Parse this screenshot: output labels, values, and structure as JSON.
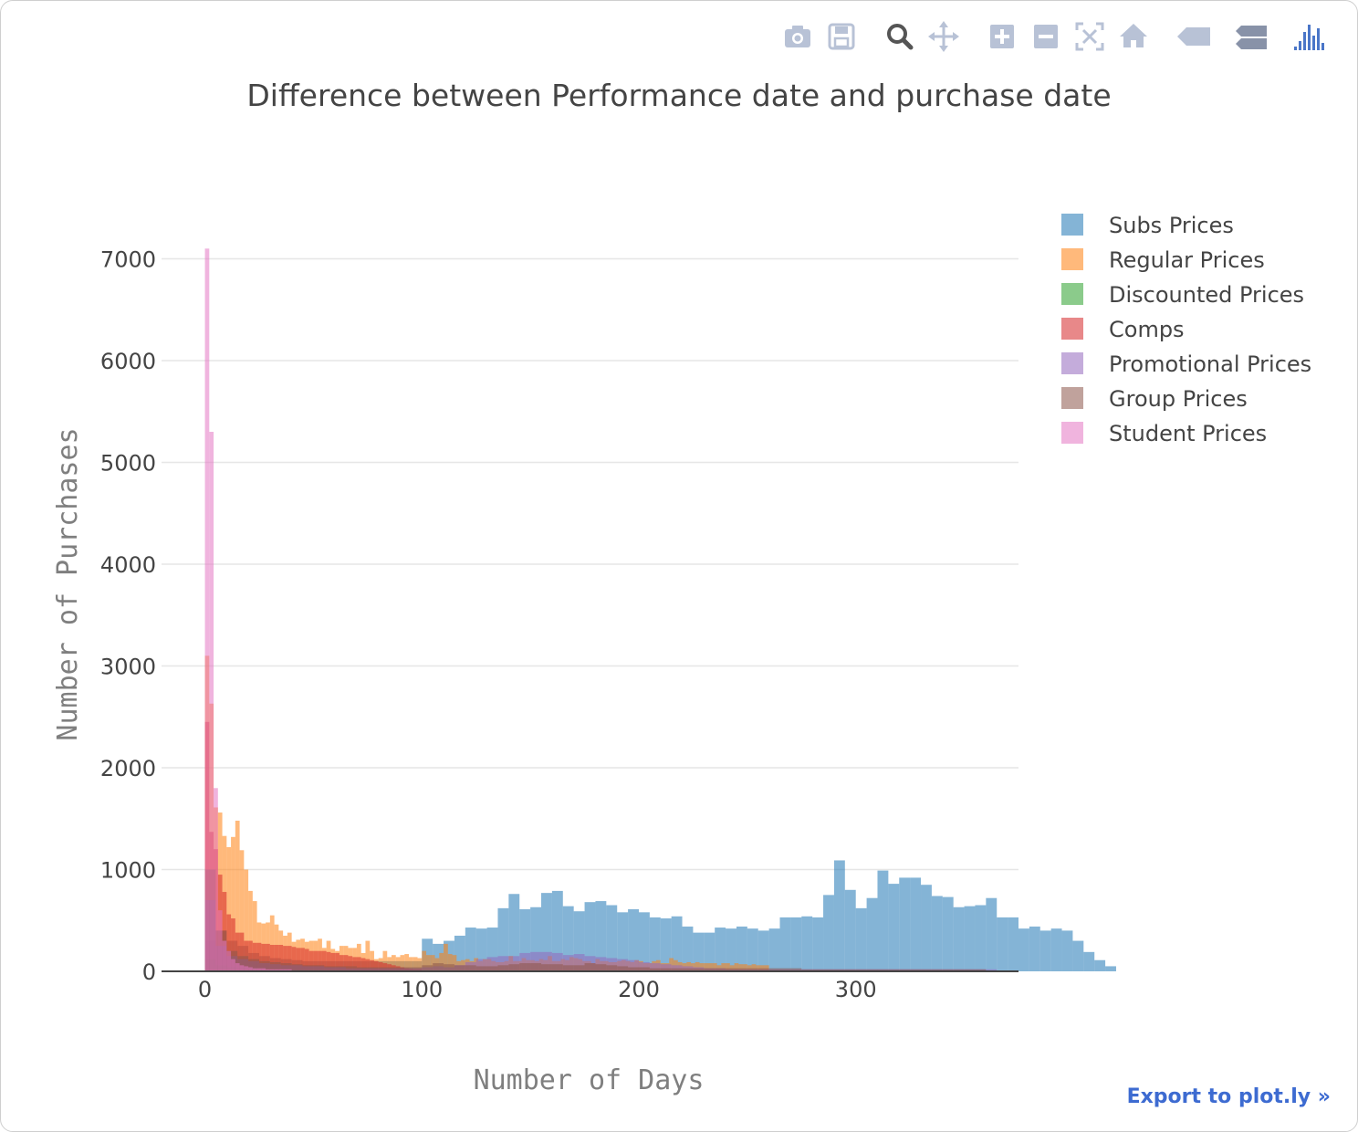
{
  "modebar": {
    "buttons": [
      {
        "icon": "camera-icon",
        "label": "Download plot as a png"
      },
      {
        "icon": "save-icon",
        "label": "Save and edit plot in cloud"
      },
      {
        "icon": "zoom-icon",
        "label": "Zoom"
      },
      {
        "icon": "pan-icon",
        "label": "Pan"
      },
      {
        "icon": "zoom-in-icon",
        "label": "Zoom in"
      },
      {
        "icon": "zoom-out-icon",
        "label": "Zoom out"
      },
      {
        "icon": "autoscale-icon",
        "label": "Autoscale"
      },
      {
        "icon": "home-icon",
        "label": "Reset axes"
      },
      {
        "icon": "hover-closest-icon",
        "label": "Show closest data on hover"
      },
      {
        "icon": "hover-compare-icon",
        "label": "Compare data on hover"
      },
      {
        "icon": "plotly-logo-icon",
        "label": "Produced with Plotly"
      }
    ]
  },
  "export_link": "Export to plot.ly »",
  "chart_data": {
    "type": "bar",
    "mode": "overlay histogram",
    "title": "Difference between Performance date and purchase date",
    "xlabel": "Number of Days",
    "ylabel": "Number of Purchases",
    "xlim": [
      -20,
      375
    ],
    "ylim": [
      0,
      7300
    ],
    "xticks": [
      0,
      100,
      200,
      300
    ],
    "yticks": [
      0,
      1000,
      2000,
      3000,
      4000,
      5000,
      6000,
      7000
    ],
    "grid": true,
    "legend_position": "right",
    "series": [
      {
        "name": "Subs Prices",
        "color": "#1f77b4",
        "bin_width": 5,
        "x_start": 0,
        "values": [
          300,
          400,
          300,
          250,
          180,
          150,
          130,
          120,
          110,
          100,
          100,
          100,
          100,
          100,
          100,
          100,
          100,
          100,
          100,
          100,
          320,
          270,
          300,
          350,
          430,
          420,
          430,
          620,
          760,
          610,
          630,
          770,
          790,
          640,
          590,
          680,
          690,
          650,
          580,
          610,
          580,
          530,
          520,
          540,
          440,
          380,
          380,
          430,
          420,
          440,
          420,
          400,
          420,
          530,
          530,
          540,
          530,
          750,
          1090,
          800,
          620,
          720,
          990,
          860,
          920,
          920,
          850,
          740,
          730,
          630,
          640,
          650,
          720,
          530,
          530,
          420,
          440,
          400,
          420,
          400,
          300,
          190,
          110,
          50
        ]
      },
      {
        "name": "Regular Prices",
        "color": "#ff7f0e",
        "bin_width": 2,
        "x_start": 0,
        "values": [
          3100,
          2630,
          1610,
          1560,
          1330,
          1220,
          1320,
          1480,
          1190,
          1000,
          790,
          690,
          480,
          470,
          480,
          550,
          460,
          400,
          350,
          380,
          290,
          310,
          320,
          290,
          300,
          300,
          320,
          230,
          300,
          220,
          200,
          250,
          250,
          230,
          230,
          270,
          180,
          300,
          200,
          120,
          130,
          200,
          140,
          160,
          140,
          160,
          170,
          140,
          140,
          130,
          200,
          160,
          160,
          130,
          180,
          270,
          170,
          160,
          100,
          110,
          120,
          100,
          130,
          100,
          120,
          120,
          100,
          90,
          90,
          100,
          150,
          100,
          100,
          130,
          110,
          110,
          100,
          120,
          110,
          150,
          100,
          100,
          120,
          110,
          140,
          130,
          120,
          100,
          100,
          80,
          120,
          100,
          100,
          90,
          90,
          100,
          110,
          100,
          90,
          110,
          100,
          80,
          80,
          100,
          110,
          80,
          80,
          130,
          110,
          90,
          80,
          90,
          80,
          90,
          80,
          80,
          80,
          80,
          60,
          80,
          80,
          60,
          80,
          70,
          70,
          60,
          70,
          60,
          60,
          60
        ]
      },
      {
        "name": "Discounted Prices",
        "color": "#2ca02c",
        "bin_width": 5,
        "x_start": 0,
        "values": [
          120,
          60,
          40,
          30,
          25,
          20,
          20,
          15,
          15,
          12,
          12,
          10,
          10,
          10,
          10,
          10,
          10,
          10,
          10,
          10,
          10
        ]
      },
      {
        "name": "Comps",
        "color": "#d62728",
        "bin_width": 2,
        "x_start": 0,
        "values": [
          2450,
          1370,
          1200,
          950,
          780,
          560,
          520,
          380,
          380,
          300,
          300,
          280,
          280,
          270,
          270,
          260,
          260,
          260,
          250,
          250,
          240,
          230,
          230,
          220,
          200,
          200,
          200,
          200,
          190,
          180,
          180,
          160,
          160,
          150,
          140,
          140,
          130,
          120,
          110,
          100,
          90,
          80,
          70,
          60,
          50,
          40,
          30,
          25,
          20,
          20
        ]
      },
      {
        "name": "Promotional Prices",
        "color": "#9467bd",
        "bin_width": 5,
        "x_start": 0,
        "values": [
          700,
          250,
          150,
          120,
          100,
          80,
          70,
          60,
          60,
          50,
          50,
          40,
          40,
          30,
          30,
          30,
          30,
          30,
          30,
          30,
          40,
          50,
          40,
          60,
          90,
          120,
          140,
          150,
          150,
          180,
          190,
          190,
          180,
          160,
          170,
          150,
          140,
          130,
          120,
          110,
          90,
          80,
          70,
          60,
          50,
          40,
          30,
          30,
          20,
          20,
          20,
          20,
          20,
          20,
          20,
          20,
          20,
          20,
          20,
          20,
          20,
          20,
          20,
          20,
          20,
          20,
          20,
          20,
          20,
          20,
          20,
          20,
          20
        ]
      },
      {
        "name": "Group Prices",
        "color": "#8c564b",
        "bin_width": 5,
        "x_start": 0,
        "values": [
          1000,
          400,
          200,
          150,
          120,
          100,
          90,
          80,
          70,
          60,
          60,
          50,
          50,
          50,
          40,
          40,
          40,
          40,
          40,
          40,
          60,
          80,
          70,
          60,
          60,
          50,
          50,
          60,
          70,
          80,
          80,
          70,
          70,
          60,
          60,
          80,
          70,
          60,
          50,
          40,
          40,
          30,
          30,
          30,
          30,
          30,
          30,
          30,
          30,
          30,
          30,
          30,
          30,
          30,
          30,
          20,
          20,
          20,
          20,
          20,
          20,
          20,
          20,
          20,
          20,
          20,
          20,
          20,
          20,
          20,
          20,
          20
        ]
      },
      {
        "name": "Student Prices",
        "color": "#e377c2",
        "bin_width": 2,
        "x_start": 0,
        "values": [
          7100,
          5300,
          1800,
          600,
          300,
          200,
          120,
          80,
          60,
          50,
          40,
          30,
          30,
          30,
          20,
          20,
          20,
          20,
          20,
          20
        ]
      }
    ]
  }
}
